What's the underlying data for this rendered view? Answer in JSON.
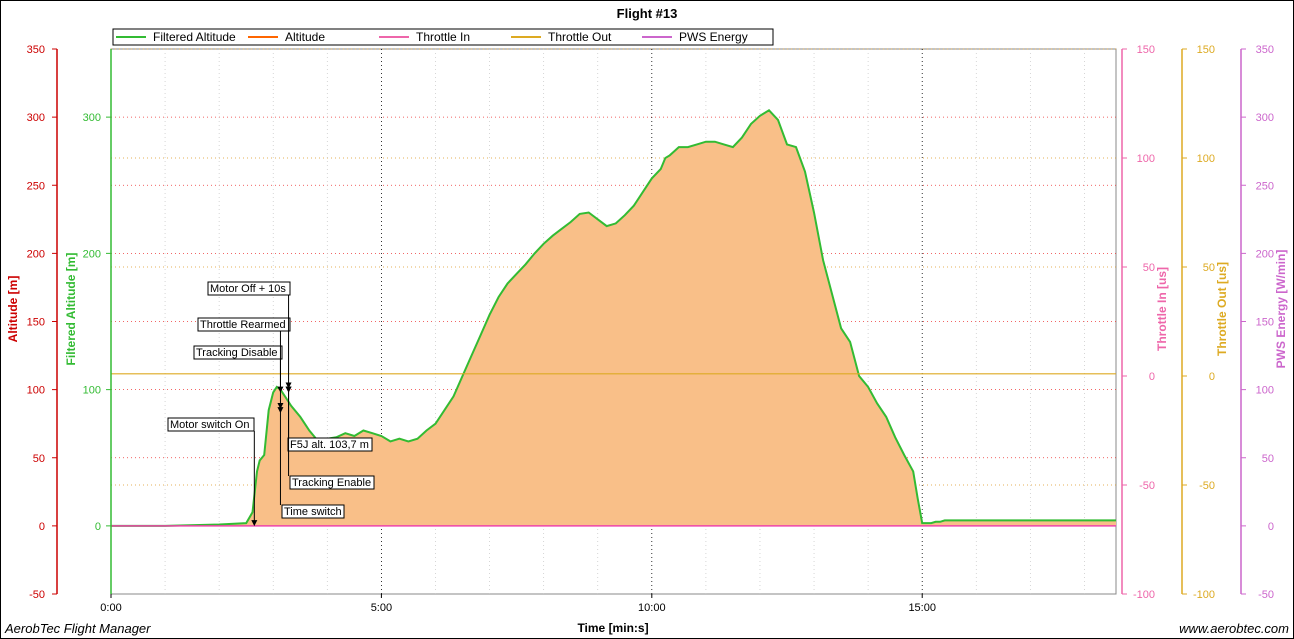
{
  "app": {
    "footer_left": "AerobTec Flight Manager",
    "footer_right": "www.aerobtec.com"
  },
  "chart_data": {
    "type": "area",
    "title": "Flight #13",
    "xlabel": "Time [min:s]",
    "x_ticks": [
      "0:00",
      "5:00",
      "10:00",
      "15:00"
    ],
    "x_tick_values": [
      0,
      300,
      600,
      900
    ],
    "xlim": [
      0,
      1115
    ],
    "grid": true,
    "legend_position": "top-left",
    "legend": [
      {
        "name": "Filtered Altitude",
        "color": "#33bb33"
      },
      {
        "name": "Altitude",
        "color": "#ff6600"
      },
      {
        "name": "Throttle In",
        "color": "#ee66aa"
      },
      {
        "name": "Throttle Out",
        "color": "#ddaa22"
      },
      {
        "name": "PWS Energy",
        "color": "#cc66cc"
      }
    ],
    "axes": [
      {
        "id": "altitude",
        "label": "Altitude [m]",
        "color": "#cc0000",
        "side": "left",
        "ylim": [
          -50,
          350
        ],
        "ticks": [
          "-50",
          "0",
          "50",
          "100",
          "150",
          "200",
          "250",
          "300",
          "350"
        ]
      },
      {
        "id": "filtered",
        "label": "Filtered Altitude [m]",
        "color": "#33bb33",
        "side": "left",
        "ylim": [
          -50,
          350
        ],
        "ticks": [
          "0",
          "100",
          "200",
          "300"
        ]
      },
      {
        "id": "throttle_in",
        "label": "Throttle In [us]",
        "color": "#ee66aa",
        "side": "right",
        "ylim": [
          -100,
          150
        ],
        "ticks": [
          "-100",
          "-50",
          "0",
          "50",
          "100",
          "150"
        ]
      },
      {
        "id": "throttle_out",
        "label": "Throttle Out [us]",
        "color": "#ddaa22",
        "side": "right",
        "ylim": [
          -100,
          150
        ],
        "ticks": [
          "-100",
          "-50",
          "0",
          "50",
          "100",
          "150"
        ]
      },
      {
        "id": "pws",
        "label": "PWS Energy [W/min]",
        "color": "#cc66cc",
        "side": "right",
        "ylim": [
          -50,
          350
        ],
        "ticks": [
          "-50",
          "0",
          "50",
          "100",
          "150",
          "200",
          "250",
          "300",
          "350"
        ]
      }
    ],
    "series": [
      {
        "name": "Filtered Altitude",
        "axis": "altitude",
        "x": [
          0,
          60,
          120,
          150,
          157,
          162,
          165,
          170,
          175,
          180,
          184,
          188,
          192,
          196,
          200,
          210,
          220,
          230,
          240,
          250,
          260,
          270,
          280,
          290,
          300,
          310,
          320,
          330,
          340,
          350,
          360,
          370,
          380,
          390,
          400,
          410,
          420,
          430,
          440,
          450,
          460,
          470,
          480,
          490,
          500,
          510,
          520,
          530,
          540,
          550,
          560,
          570,
          580,
          590,
          600,
          610,
          615,
          620,
          625,
          630,
          640,
          650,
          660,
          670,
          680,
          690,
          700,
          710,
          720,
          730,
          740,
          750,
          760,
          770,
          780,
          790,
          800,
          810,
          820,
          830,
          840,
          850,
          860,
          870,
          880,
          890,
          895,
          900,
          905,
          910,
          915,
          920,
          925,
          930,
          935,
          940,
          945,
          950,
          955,
          960,
          965,
          970,
          975,
          980,
          990,
          1000,
          1010,
          1020,
          1030,
          1040,
          1050,
          1060,
          1080,
          1100,
          1115
        ],
        "y": [
          0,
          0,
          1,
          2,
          10,
          40,
          48,
          52,
          85,
          98,
          102,
          100,
          96,
          92,
          88,
          80,
          70,
          62,
          64,
          65,
          68,
          66,
          70,
          68,
          66,
          62,
          64,
          62,
          64,
          70,
          75,
          85,
          95,
          110,
          125,
          140,
          155,
          168,
          178,
          185,
          192,
          200,
          207,
          213,
          218,
          223,
          229,
          230,
          225,
          220,
          222,
          228,
          235,
          245,
          255,
          262,
          270,
          272,
          275,
          278,
          278,
          280,
          282,
          282,
          280,
          278,
          285,
          295,
          301,
          305,
          298,
          280,
          278,
          260,
          230,
          195,
          170,
          145,
          135,
          110,
          102,
          90,
          80,
          65,
          52,
          40,
          20,
          2,
          2,
          2,
          3,
          3,
          4,
          4,
          4,
          4,
          4,
          4,
          4,
          4,
          4,
          4,
          4,
          4,
          4,
          4,
          4,
          4,
          4,
          4,
          4,
          4,
          4,
          4,
          4
        ]
      },
      {
        "name": "Throttle Out",
        "axis": "throttle_out",
        "constant": 1
      },
      {
        "name": "PWS Energy",
        "axis": "pws",
        "constant": 0
      }
    ],
    "annotations": [
      {
        "label": "Motor switch On",
        "x": 159,
        "y": 2
      },
      {
        "label": "Tracking Disable",
        "x": 188,
        "y": 85
      },
      {
        "label": "Throttle Rearmed",
        "x": 188,
        "y": 100
      },
      {
        "label": "Motor Off + 10s",
        "x": 197,
        "y": 103
      },
      {
        "label": "F5J alt. 103,7 m",
        "x": 197,
        "y": 100
      },
      {
        "label": "Tracking Enable",
        "x": 197,
        "y": 100
      },
      {
        "label": "Time switch",
        "x": 188,
        "y": 88
      }
    ]
  }
}
